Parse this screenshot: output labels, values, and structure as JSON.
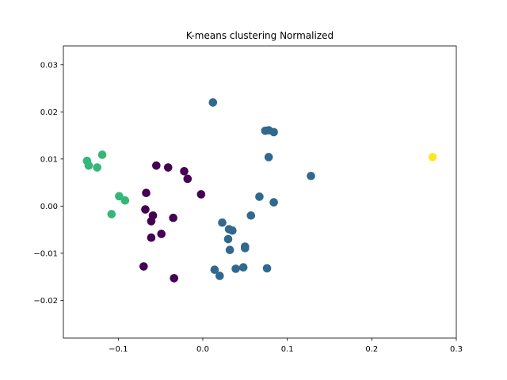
{
  "chart_data": {
    "type": "scatter",
    "title": "K-means clustering Normalized",
    "xlabel": "",
    "ylabel": "",
    "xlim": [
      -0.165,
      0.3
    ],
    "ylim": [
      -0.028,
      0.034
    ],
    "xticks": [
      {
        "value": -0.1,
        "label": "−0.1"
      },
      {
        "value": 0.0,
        "label": "0.0"
      },
      {
        "value": 0.1,
        "label": "0.1"
      },
      {
        "value": 0.2,
        "label": "0.2"
      },
      {
        "value": 0.3,
        "label": "0.3"
      }
    ],
    "yticks": [
      {
        "value": -0.02,
        "label": "−0.02"
      },
      {
        "value": -0.01,
        "label": "−0.01"
      },
      {
        "value": 0.0,
        "label": "0.00"
      },
      {
        "value": 0.01,
        "label": "0.01"
      },
      {
        "value": 0.02,
        "label": "0.02"
      },
      {
        "value": 0.03,
        "label": "0.03"
      }
    ],
    "grid": false,
    "legend": "none",
    "series": [
      {
        "color": "#440154",
        "points": [
          [
            -0.055,
            0.0086
          ],
          [
            -0.041,
            0.0082
          ],
          [
            -0.022,
            0.0074
          ],
          [
            -0.018,
            0.0058
          ],
          [
            -0.002,
            0.0025
          ],
          [
            -0.067,
            0.0028
          ],
          [
            -0.068,
            -0.0007
          ],
          [
            -0.059,
            -0.002
          ],
          [
            -0.061,
            -0.0032
          ],
          [
            -0.035,
            -0.0025
          ],
          [
            -0.049,
            -0.0059
          ],
          [
            -0.061,
            -0.0067
          ],
          [
            -0.07,
            -0.0128
          ],
          [
            -0.034,
            -0.0153
          ]
        ]
      },
      {
        "color": "#31688e",
        "points": [
          [
            0.012,
            0.022
          ],
          [
            0.074,
            0.016
          ],
          [
            0.078,
            0.0161
          ],
          [
            0.084,
            0.0157
          ],
          [
            0.078,
            0.0104
          ],
          [
            0.128,
            0.0064
          ],
          [
            0.067,
            0.002
          ],
          [
            0.084,
            0.0008
          ],
          [
            0.057,
            -0.002
          ],
          [
            0.023,
            -0.0035
          ],
          [
            0.031,
            -0.0049
          ],
          [
            0.035,
            -0.0052
          ],
          [
            0.03,
            -0.007
          ],
          [
            0.05,
            -0.0086
          ],
          [
            0.05,
            -0.0089
          ],
          [
            0.032,
            -0.0093
          ],
          [
            0.048,
            -0.013
          ],
          [
            0.039,
            -0.0133
          ],
          [
            0.076,
            -0.0132
          ],
          [
            0.014,
            -0.0135
          ],
          [
            0.02,
            -0.0148
          ]
        ]
      },
      {
        "color": "#35b779",
        "points": [
          [
            -0.137,
            0.0096
          ],
          [
            -0.135,
            0.0086
          ],
          [
            -0.125,
            0.0082
          ],
          [
            -0.119,
            0.0109
          ],
          [
            -0.099,
            0.0021
          ],
          [
            -0.092,
            0.0012
          ],
          [
            -0.108,
            -0.0017
          ]
        ]
      },
      {
        "color": "#fde725",
        "points": [
          [
            0.272,
            0.0104
          ]
        ]
      }
    ]
  }
}
